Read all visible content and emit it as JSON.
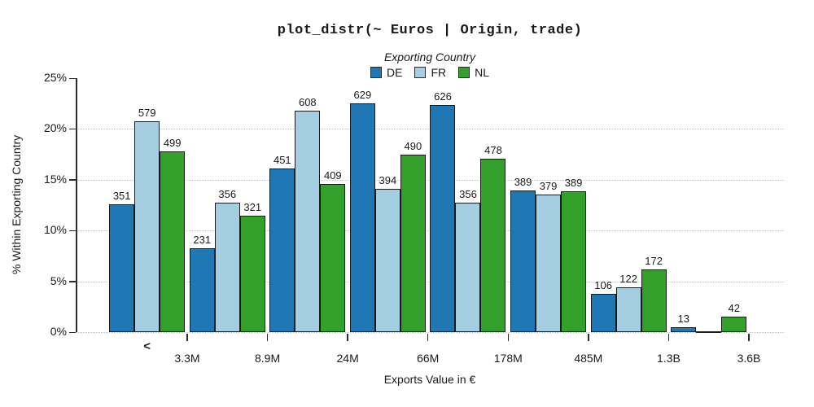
{
  "title": "plot_distr(~ Euros | Origin, trade)",
  "legend": {
    "title": "Exporting Country",
    "entries": [
      {
        "label": "DE",
        "color": "#1F78B4"
      },
      {
        "label": "FR",
        "color": "#A6CEE3"
      },
      {
        "label": "NL",
        "color": "#33A02C"
      }
    ]
  },
  "axes": {
    "ylabel": "% Within Exporting Country",
    "xlabel": "Exports Value in €"
  },
  "chart_data": {
    "type": "bar",
    "subtype": "grouped-histogram",
    "title": "plot_distr(~ Euros | Origin, trade)",
    "xlabel": "Exports Value in €",
    "ylabel": "% Within Exporting Country",
    "ylim": [
      0,
      25
    ],
    "ytick_values": [
      0,
      5,
      10,
      15,
      20,
      25
    ],
    "ytick_labels": [
      "0%",
      "5%",
      "10%",
      "15%",
      "20%",
      "25%"
    ],
    "gridline_values": [
      0,
      5,
      10,
      15,
      20
    ],
    "grid": "horizontal-dotted",
    "bins": 8,
    "bin_edge_labels": [
      "3.3M",
      "8.9M",
      "24M",
      "66M",
      "178M",
      "485M",
      "1.3B",
      "3.6B"
    ],
    "underflow_label": "<",
    "legend_title": "Exporting Country",
    "legend_position": "top-center",
    "bar_border_color": "#1a1a1a",
    "series": [
      {
        "name": "DE",
        "color": "#1F78B4",
        "counts": [
          351,
          231,
          451,
          629,
          626,
          389,
          106,
          13
        ],
        "pct_within_country": [
          12.55,
          8.26,
          16.13,
          22.5,
          22.39,
          13.91,
          3.79,
          0.46
        ]
      },
      {
        "name": "FR",
        "color": "#A6CEE3",
        "counts": [
          579,
          356,
          608,
          394,
          356,
          379,
          122,
          null
        ],
        "pct_within_country": [
          20.72,
          12.74,
          21.76,
          14.1,
          12.74,
          13.56,
          4.37,
          0
        ]
      },
      {
        "name": "NL",
        "color": "#33A02C",
        "counts": [
          499,
          321,
          409,
          490,
          478,
          389,
          172,
          42
        ],
        "pct_within_country": [
          17.82,
          11.46,
          14.61,
          17.5,
          17.07,
          13.89,
          6.14,
          1.5
        ]
      }
    ]
  }
}
